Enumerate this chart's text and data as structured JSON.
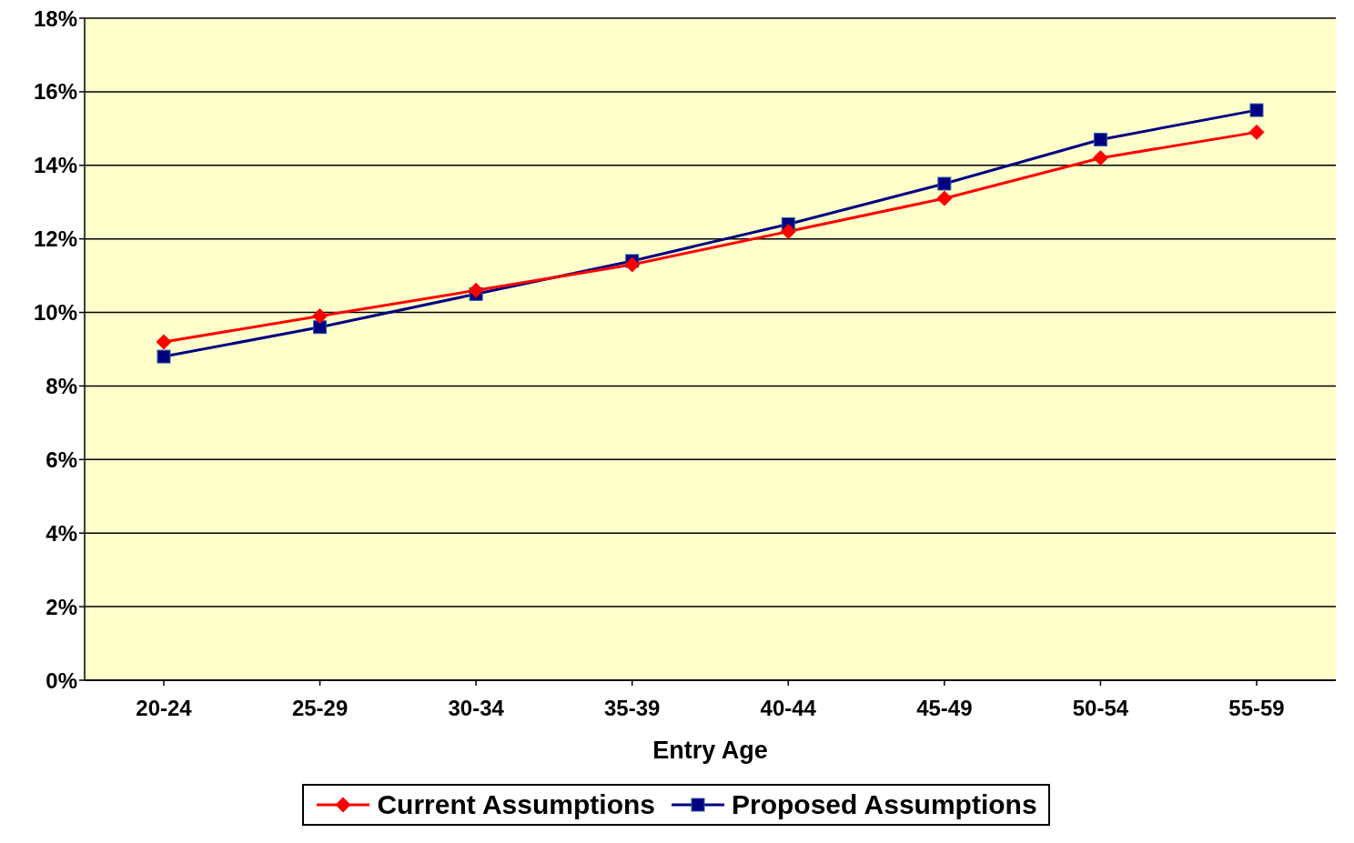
{
  "chart_data": {
    "type": "line",
    "xlabel": "Entry Age",
    "categories": [
      "20-24",
      "25-29",
      "30-34",
      "35-39",
      "40-44",
      "45-49",
      "50-54",
      "55-59"
    ],
    "series": [
      {
        "name": "Current Assumptions",
        "color": "#ff0000",
        "marker": "diamond",
        "values": [
          9.2,
          9.9,
          10.6,
          11.3,
          12.2,
          13.1,
          14.2,
          14.9
        ]
      },
      {
        "name": "Proposed Assumptions",
        "color": "#000080",
        "marker": "square",
        "values": [
          8.8,
          9.6,
          10.5,
          11.4,
          12.4,
          13.5,
          14.7,
          15.5
        ]
      }
    ],
    "ylim": [
      0,
      18
    ],
    "yticks": [
      {
        "value": 0,
        "label": "0%"
      },
      {
        "value": 2,
        "label": "2%"
      },
      {
        "value": 4,
        "label": "4%"
      },
      {
        "value": 6,
        "label": "6%"
      },
      {
        "value": 8,
        "label": "8%"
      },
      {
        "value": 10,
        "label": "10%"
      },
      {
        "value": 12,
        "label": "12%"
      },
      {
        "value": 14,
        "label": "14%"
      },
      {
        "value": 16,
        "label": "16%"
      },
      {
        "value": 18,
        "label": "18%"
      }
    ],
    "grid": "y",
    "legend": "bottom",
    "line_style": "solid"
  }
}
